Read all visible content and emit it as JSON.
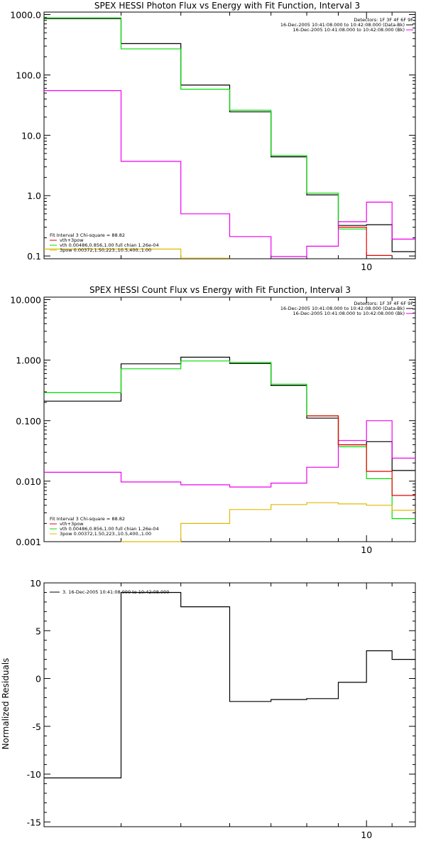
{
  "chart_data": [
    {
      "type": "line",
      "step": true,
      "title": "SPEX HESSI Photon Flux vs Energy with Fit Function, Interval 3",
      "xlabel": "",
      "ylabel": "",
      "y_scale": "log",
      "x_scale": "log",
      "ylim": [
        0.09,
        1100
      ],
      "y_ticks": [
        {
          "value": 0.1,
          "label": "0.1"
        },
        {
          "value": 1,
          "label": "1.0"
        },
        {
          "value": 10,
          "label": "10.0"
        },
        {
          "value": 100,
          "label": "100.0"
        },
        {
          "value": 1000,
          "label": "1000.0"
        }
      ],
      "x_ticks": [
        {
          "value": 10,
          "label": "10"
        }
      ],
      "x_edges": [
        3,
        4,
        5,
        6,
        7,
        8,
        9,
        10,
        11,
        12
      ],
      "series": [
        {
          "name": "",
          "color": "#000000",
          "values": [
            860,
            330,
            68,
            24.5,
            4.4,
            1.03,
            0.32,
            0.33,
            0.118
          ]
        },
        {
          "name": "",
          "color": "#00dd00",
          "values": [
            880,
            270,
            58,
            26,
            4.6,
            1.1,
            0.28,
            null,
            null
          ]
        },
        {
          "name": "",
          "color": "#ee00ee",
          "values": [
            55,
            3.7,
            0.5,
            0.21,
            0.098,
            0.145,
            0.37,
            0.78,
            0.19
          ]
        },
        {
          "name": "",
          "color": "#ee0000",
          "values": [
            null,
            null,
            null,
            null,
            null,
            null,
            0.3,
            0.102,
            null
          ]
        },
        {
          "name": "",
          "color": "#ddbb00",
          "values": [
            0.13,
            0.13,
            0.092,
            null,
            null,
            null,
            null,
            null,
            null
          ]
        }
      ],
      "legend_top_right": {
        "lines": [
          {
            "text": "Detectors: 1F 3F 4F 6F 9F",
            "color": ""
          },
          {
            "text": "16-Dec-2005 10:41:08.000 to 10:42:08.000 (Data-Bk)",
            "color": "#000000"
          },
          {
            "text": "16-Dec-2005 10:41:08.000 to 10:42:08.000 (Bk)",
            "color": "#ee00ee"
          }
        ]
      },
      "legend_bottom_left": {
        "lines": [
          {
            "text": "Fit Interval 3   Chi-square = 88.82",
            "color": ""
          },
          {
            "text": "vth+3pow",
            "color": "#ee0000"
          },
          {
            "text": "vth 0.00486,0.856,1.00  full chian 1.26e-04",
            "color": "#00dd00"
          },
          {
            "text": "3pow 0.00372,1.50,223.,10.5,400.,1.00",
            "color": "#ddbb00"
          }
        ]
      }
    },
    {
      "type": "line",
      "step": true,
      "title": "SPEX HESSI Count Flux vs Energy with Fit Function, Interval 3",
      "xlabel": "",
      "ylabel": "",
      "y_scale": "log",
      "x_scale": "log",
      "ylim": [
        0.001,
        11
      ],
      "y_ticks": [
        {
          "value": 0.001,
          "label": "0.001"
        },
        {
          "value": 0.01,
          "label": "0.010"
        },
        {
          "value": 0.1,
          "label": "0.100"
        },
        {
          "value": 1,
          "label": "1.000"
        },
        {
          "value": 10,
          "label": "10.000"
        }
      ],
      "x_ticks": [
        {
          "value": 10,
          "label": "10"
        }
      ],
      "x_edges": [
        3,
        4,
        5,
        6,
        7,
        8,
        9,
        10,
        11,
        12
      ],
      "series": [
        {
          "name": "",
          "color": "#000000",
          "values": [
            0.21,
            0.87,
            1.12,
            0.88,
            0.38,
            0.11,
            0.04,
            0.045,
            0.015,
            0.015
          ]
        },
        {
          "name": "",
          "color": "#00dd00",
          "values": [
            0.29,
            0.72,
            0.97,
            0.92,
            0.4,
            0.12,
            0.037,
            0.011,
            0.0024,
            0.0024
          ]
        },
        {
          "name": "",
          "color": "#ee00ee",
          "values": [
            0.014,
            0.0097,
            0.0087,
            0.008,
            0.0093,
            0.017,
            0.047,
            0.1,
            0.024,
            0.024
          ]
        },
        {
          "name": "",
          "color": "#ee0000",
          "values": [
            null,
            null,
            null,
            null,
            null,
            0.12,
            0.04,
            0.0145,
            0.0058,
            0.0058
          ]
        },
        {
          "name": "",
          "color": "#ddbb00",
          "values": [
            null,
            0.001,
            0.002,
            0.0034,
            0.0041,
            0.0044,
            0.0042,
            0.004,
            0.0033,
            0.0033
          ]
        }
      ],
      "legend_top_right": {
        "lines": [
          {
            "text": "Detectors: 1F 3F 4F 6F 9F",
            "color": ""
          },
          {
            "text": "16-Dec-2005 10:41:08.000 to 10:42:08.000 (Data-Bk)",
            "color": "#000000"
          },
          {
            "text": "16-Dec-2005 10:41:08.000 to 10:42:08.000 (Bk)",
            "color": "#ee00ee"
          }
        ]
      },
      "legend_bottom_left": {
        "lines": [
          {
            "text": "Fit Interval 3   Chi-square = 88.82",
            "color": ""
          },
          {
            "text": "vth+3pow",
            "color": "#ee0000"
          },
          {
            "text": "vth 0.00486,0.856,1.00  full chian 1.26e-04",
            "color": "#00dd00"
          },
          {
            "text": "3pow 0.00372,1.50,223.,10.5,400.,1.00",
            "color": "#ddbb00"
          }
        ]
      }
    },
    {
      "type": "line",
      "step": true,
      "title": "",
      "xlabel": "",
      "ylabel": "Normalized Residuals",
      "y_scale": "linear",
      "x_scale": "log",
      "ylim": [
        -15.5,
        10
      ],
      "y_ticks": [
        {
          "value": -15,
          "label": "-15"
        },
        {
          "value": -10,
          "label": "-10"
        },
        {
          "value": -5,
          "label": "-5"
        },
        {
          "value": 0,
          "label": "0"
        },
        {
          "value": 5,
          "label": "5"
        },
        {
          "value": 10,
          "label": "10"
        }
      ],
      "x_ticks": [
        {
          "value": 10,
          "label": "10"
        }
      ],
      "x_edges": [
        3,
        4,
        5,
        6,
        7,
        8,
        9,
        10,
        11,
        12
      ],
      "series": [
        {
          "name": "",
          "color": "#000000",
          "values": [
            -10.4,
            9,
            7.5,
            -2.4,
            -2.2,
            -2.1,
            -0.4,
            2.9,
            2.0
          ]
        }
      ],
      "legend_top_left": {
        "lines": [
          {
            "text": "3. 16-Dec-2005 10:41:08.000 to 10:42:08.000",
            "color": "#000000"
          }
        ]
      }
    }
  ]
}
